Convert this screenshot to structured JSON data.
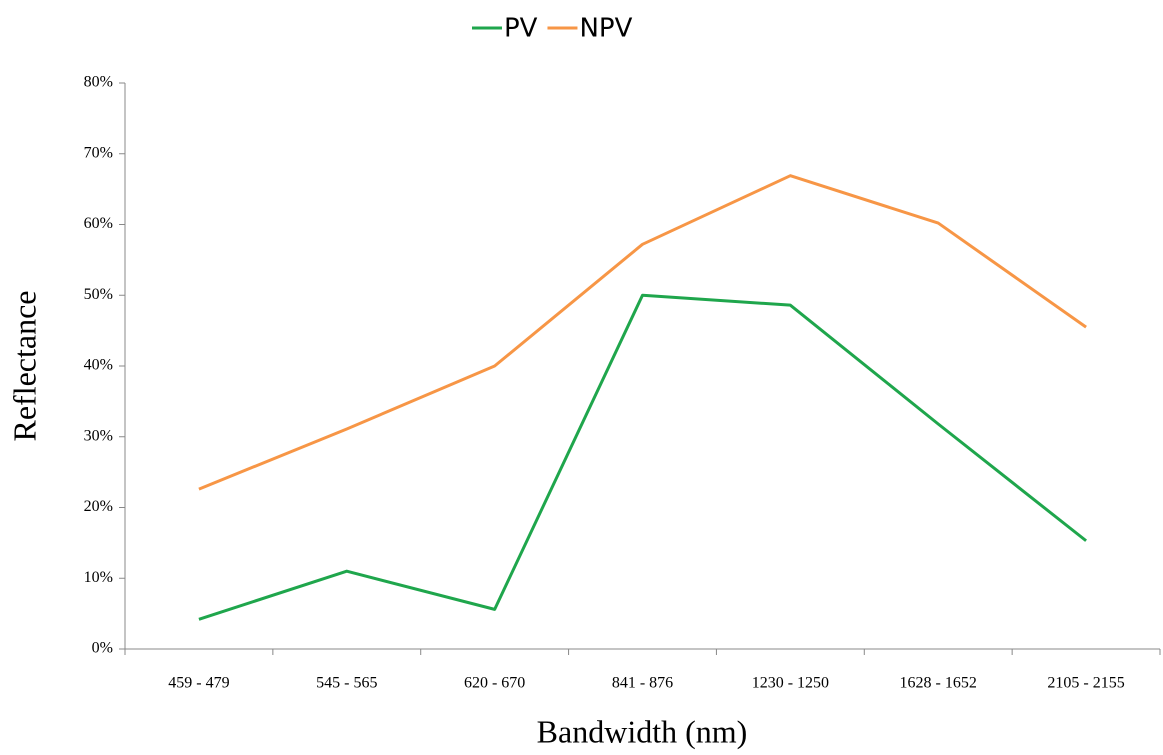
{
  "chart_data": {
    "type": "line",
    "x_label": "Bandwidth (nm)",
    "y_label": "Reflectance",
    "categories": [
      "459 - 479",
      "545 - 565",
      "620 - 670",
      "841 - 876",
      "1230 - 1250",
      "1628 - 1652",
      "2105 - 2155"
    ],
    "series": [
      {
        "name": "PV",
        "color": "#1fa64c",
        "values": [
          4.2,
          11.0,
          5.6,
          50.0,
          48.6,
          31.8,
          15.3
        ]
      },
      {
        "name": "NPV",
        "color": "#f79646",
        "values": [
          22.6,
          31.1,
          40.0,
          57.2,
          66.9,
          60.2,
          45.5
        ]
      }
    ],
    "ylim": [
      0,
      80
    ],
    "yticks": [
      {
        "value": 0,
        "label": "0%"
      },
      {
        "value": 10,
        "label": "10%"
      },
      {
        "value": 20,
        "label": "20%"
      },
      {
        "value": 30,
        "label": "30%"
      },
      {
        "value": 40,
        "label": "40%"
      },
      {
        "value": 50,
        "label": "50%"
      },
      {
        "value": 60,
        "label": "60%"
      },
      {
        "value": 70,
        "label": "70%"
      },
      {
        "value": 80,
        "label": "80%"
      }
    ],
    "grid": false,
    "legend": "top"
  }
}
